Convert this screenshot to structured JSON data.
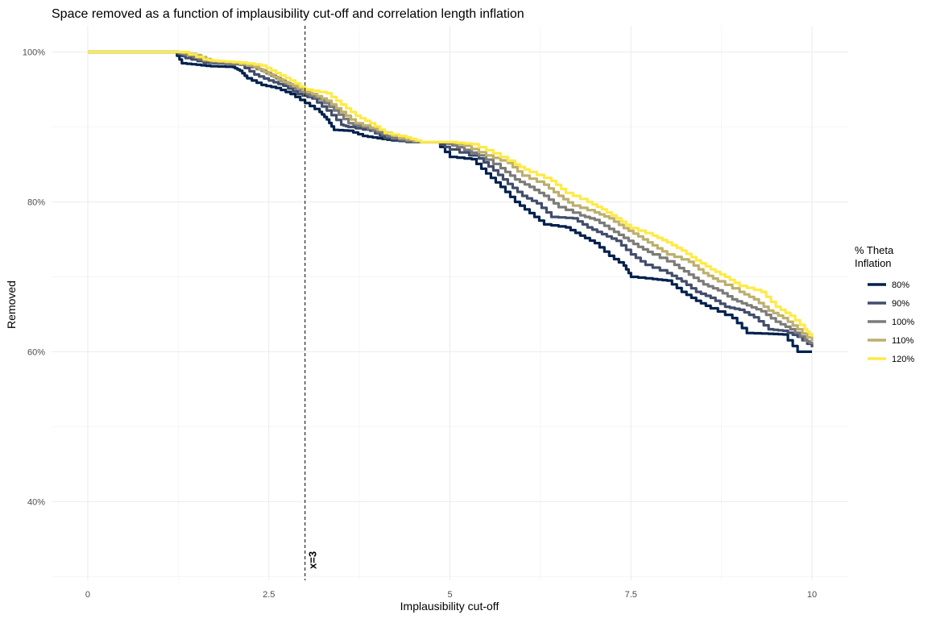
{
  "chart_data": {
    "type": "line",
    "title": "Space removed as a function of implausibility cut-off and correlation length inflation",
    "xlabel": "Implausibility cut-off",
    "ylabel": "Removed",
    "xlim": [
      -0.5,
      10.5
    ],
    "ylim": [
      0.295,
      1.035
    ],
    "x_ticks": [
      0,
      2.5,
      5,
      7.5,
      10
    ],
    "x_tick_labels": [
      "0",
      "2.5",
      "5",
      "7.5",
      "10"
    ],
    "y_ticks": [
      0.4,
      0.6,
      0.8,
      1.0
    ],
    "y_tick_labels": [
      "40%",
      "60%",
      "80%",
      "100%"
    ],
    "grid": true,
    "legend": {
      "title": "% Theta\nInflation",
      "placement": "right"
    },
    "vline": {
      "x": 3,
      "label": "x=3",
      "style": "dashed"
    },
    "series": [
      {
        "name": "80%",
        "color": "#00204d",
        "points": [
          [
            0,
            1.0
          ],
          [
            1.2,
            1.0
          ],
          [
            1.3,
            0.985
          ],
          [
            1.5,
            0.983
          ],
          [
            1.7,
            0.981
          ],
          [
            2.0,
            0.98
          ],
          [
            2.1,
            0.975
          ],
          [
            2.2,
            0.965
          ],
          [
            2.4,
            0.956
          ],
          [
            2.6,
            0.952
          ],
          [
            2.8,
            0.944
          ],
          [
            3.0,
            0.932
          ],
          [
            3.2,
            0.92
          ],
          [
            3.3,
            0.91
          ],
          [
            3.4,
            0.896
          ],
          [
            3.6,
            0.895
          ],
          [
            3.8,
            0.888
          ],
          [
            4.0,
            0.885
          ],
          [
            4.2,
            0.882
          ],
          [
            4.5,
            0.88
          ],
          [
            4.8,
            0.88
          ],
          [
            5.0,
            0.86
          ],
          [
            5.3,
            0.857
          ],
          [
            5.5,
            0.838
          ],
          [
            5.7,
            0.82
          ],
          [
            5.9,
            0.8
          ],
          [
            6.1,
            0.785
          ],
          [
            6.3,
            0.77
          ],
          [
            6.6,
            0.766
          ],
          [
            6.8,
            0.755
          ],
          [
            7.0,
            0.745
          ],
          [
            7.2,
            0.728
          ],
          [
            7.4,
            0.715
          ],
          [
            7.5,
            0.7
          ],
          [
            7.8,
            0.697
          ],
          [
            8.0,
            0.695
          ],
          [
            8.2,
            0.68
          ],
          [
            8.4,
            0.668
          ],
          [
            8.6,
            0.658
          ],
          [
            8.9,
            0.645
          ],
          [
            9.1,
            0.625
          ],
          [
            9.4,
            0.624
          ],
          [
            9.6,
            0.623
          ],
          [
            9.8,
            0.6
          ],
          [
            10.0,
            0.6
          ]
        ]
      },
      {
        "name": "90%",
        "color": "#414d6b",
        "points": [
          [
            0,
            1.0
          ],
          [
            1.2,
            1.0
          ],
          [
            1.35,
            0.992
          ],
          [
            1.6,
            0.986
          ],
          [
            1.8,
            0.985
          ],
          [
            2.1,
            0.983
          ],
          [
            2.3,
            0.97
          ],
          [
            2.5,
            0.962
          ],
          [
            2.7,
            0.955
          ],
          [
            2.9,
            0.944
          ],
          [
            3.1,
            0.938
          ],
          [
            3.3,
            0.922
          ],
          [
            3.5,
            0.903
          ],
          [
            3.6,
            0.9
          ],
          [
            3.9,
            0.895
          ],
          [
            4.1,
            0.885
          ],
          [
            4.4,
            0.88
          ],
          [
            4.8,
            0.88
          ],
          [
            5.0,
            0.87
          ],
          [
            5.4,
            0.858
          ],
          [
            5.6,
            0.842
          ],
          [
            5.8,
            0.824
          ],
          [
            6.0,
            0.808
          ],
          [
            6.2,
            0.798
          ],
          [
            6.4,
            0.78
          ],
          [
            6.7,
            0.778
          ],
          [
            6.9,
            0.766
          ],
          [
            7.1,
            0.757
          ],
          [
            7.3,
            0.748
          ],
          [
            7.5,
            0.73
          ],
          [
            7.7,
            0.716
          ],
          [
            8.0,
            0.705
          ],
          [
            8.2,
            0.694
          ],
          [
            8.4,
            0.68
          ],
          [
            8.6,
            0.672
          ],
          [
            8.8,
            0.66
          ],
          [
            9.0,
            0.656
          ],
          [
            9.2,
            0.646
          ],
          [
            9.4,
            0.63
          ],
          [
            9.6,
            0.628
          ],
          [
            9.8,
            0.62
          ],
          [
            10.0,
            0.606
          ]
        ]
      },
      {
        "name": "100%",
        "color": "#7c7b78",
        "points": [
          [
            0,
            1.0
          ],
          [
            1.2,
            1.0
          ],
          [
            1.4,
            0.995
          ],
          [
            1.6,
            0.988
          ],
          [
            1.9,
            0.985
          ],
          [
            2.2,
            0.982
          ],
          [
            2.4,
            0.975
          ],
          [
            2.6,
            0.965
          ],
          [
            2.8,
            0.955
          ],
          [
            3.0,
            0.944
          ],
          [
            3.2,
            0.937
          ],
          [
            3.4,
            0.922
          ],
          [
            3.6,
            0.905
          ],
          [
            3.8,
            0.9
          ],
          [
            4.0,
            0.893
          ],
          [
            4.2,
            0.885
          ],
          [
            4.5,
            0.88
          ],
          [
            4.9,
            0.88
          ],
          [
            5.1,
            0.873
          ],
          [
            5.4,
            0.862
          ],
          [
            5.7,
            0.845
          ],
          [
            5.9,
            0.83
          ],
          [
            6.1,
            0.82
          ],
          [
            6.3,
            0.808
          ],
          [
            6.5,
            0.793
          ],
          [
            6.8,
            0.782
          ],
          [
            7.0,
            0.776
          ],
          [
            7.2,
            0.764
          ],
          [
            7.4,
            0.752
          ],
          [
            7.6,
            0.74
          ],
          [
            7.8,
            0.73
          ],
          [
            8.1,
            0.716
          ],
          [
            8.3,
            0.703
          ],
          [
            8.5,
            0.69
          ],
          [
            8.7,
            0.682
          ],
          [
            8.9,
            0.67
          ],
          [
            9.1,
            0.662
          ],
          [
            9.3,
            0.654
          ],
          [
            9.5,
            0.64
          ],
          [
            9.7,
            0.63
          ],
          [
            9.9,
            0.616
          ],
          [
            10.0,
            0.61
          ]
        ]
      },
      {
        "name": "110%",
        "color": "#bcaf6f",
        "points": [
          [
            0,
            1.0
          ],
          [
            1.2,
            1.0
          ],
          [
            1.5,
            0.996
          ],
          [
            1.7,
            0.988
          ],
          [
            2.0,
            0.986
          ],
          [
            2.3,
            0.98
          ],
          [
            2.5,
            0.97
          ],
          [
            2.7,
            0.96
          ],
          [
            2.9,
            0.952
          ],
          [
            3.1,
            0.944
          ],
          [
            3.3,
            0.935
          ],
          [
            3.5,
            0.92
          ],
          [
            3.7,
            0.905
          ],
          [
            4.0,
            0.896
          ],
          [
            4.3,
            0.885
          ],
          [
            4.6,
            0.88
          ],
          [
            5.0,
            0.88
          ],
          [
            5.2,
            0.875
          ],
          [
            5.5,
            0.862
          ],
          [
            5.8,
            0.852
          ],
          [
            6.0,
            0.835
          ],
          [
            6.3,
            0.823
          ],
          [
            6.5,
            0.808
          ],
          [
            6.7,
            0.795
          ],
          [
            7.0,
            0.786
          ],
          [
            7.2,
            0.778
          ],
          [
            7.4,
            0.765
          ],
          [
            7.6,
            0.754
          ],
          [
            7.8,
            0.742
          ],
          [
            8.0,
            0.73
          ],
          [
            8.3,
            0.72
          ],
          [
            8.5,
            0.705
          ],
          [
            8.7,
            0.694
          ],
          [
            9.0,
            0.68
          ],
          [
            9.2,
            0.67
          ],
          [
            9.4,
            0.655
          ],
          [
            9.6,
            0.645
          ],
          [
            9.8,
            0.63
          ],
          [
            10.0,
            0.614
          ]
        ]
      },
      {
        "name": "120%",
        "color": "#ffea46",
        "points": [
          [
            0,
            1.0
          ],
          [
            1.3,
            1.0
          ],
          [
            1.6,
            0.99
          ],
          [
            1.8,
            0.988
          ],
          [
            2.1,
            0.986
          ],
          [
            2.4,
            0.982
          ],
          [
            2.6,
            0.972
          ],
          [
            2.8,
            0.962
          ],
          [
            3.0,
            0.95
          ],
          [
            3.3,
            0.945
          ],
          [
            3.5,
            0.93
          ],
          [
            3.7,
            0.915
          ],
          [
            3.9,
            0.905
          ],
          [
            4.1,
            0.892
          ],
          [
            4.4,
            0.886
          ],
          [
            4.6,
            0.88
          ],
          [
            5.0,
            0.88
          ],
          [
            5.3,
            0.877
          ],
          [
            5.6,
            0.865
          ],
          [
            5.9,
            0.85
          ],
          [
            6.1,
            0.84
          ],
          [
            6.4,
            0.828
          ],
          [
            6.6,
            0.812
          ],
          [
            6.9,
            0.8
          ],
          [
            7.1,
            0.79
          ],
          [
            7.3,
            0.778
          ],
          [
            7.5,
            0.765
          ],
          [
            7.8,
            0.755
          ],
          [
            8.0,
            0.746
          ],
          [
            8.2,
            0.735
          ],
          [
            8.4,
            0.722
          ],
          [
            8.6,
            0.71
          ],
          [
            8.8,
            0.7
          ],
          [
            9.0,
            0.688
          ],
          [
            9.3,
            0.68
          ],
          [
            9.5,
            0.66
          ],
          [
            9.7,
            0.648
          ],
          [
            9.9,
            0.63
          ],
          [
            10.0,
            0.62
          ]
        ]
      }
    ]
  }
}
